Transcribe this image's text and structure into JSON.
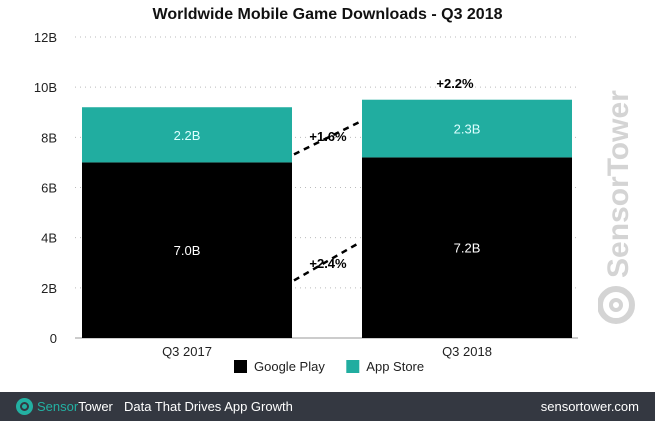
{
  "chart_data": {
    "type": "bar",
    "stacked": true,
    "title": "Worldwide Mobile Game Downloads - Q3 2018",
    "categories": [
      "Q3 2017",
      "Q3 2018"
    ],
    "series": [
      {
        "name": "Google Play",
        "values": [
          7.0,
          7.2
        ],
        "labels": [
          "7.0B",
          "7.2B"
        ],
        "color": "#000000"
      },
      {
        "name": "App Store",
        "values": [
          2.2,
          2.3
        ],
        "labels": [
          "2.2B",
          "2.3B"
        ],
        "color": "#21ada0"
      }
    ],
    "annotations": {
      "google_play_growth": "+2.4%",
      "app_store_growth": "+1.6%",
      "total_growth": "+2.2%"
    },
    "yticks": [
      "0",
      "2B",
      "4B",
      "6B",
      "8B",
      "10B",
      "12B"
    ],
    "ylim": [
      0,
      12
    ],
    "grid": true,
    "legend": "bottom"
  },
  "watermark": "SensorTower",
  "footer": {
    "brand_a": "Sensor",
    "brand_b": "Tower",
    "tagline": "Data That Drives App Growth",
    "url": "sensortower.com"
  }
}
